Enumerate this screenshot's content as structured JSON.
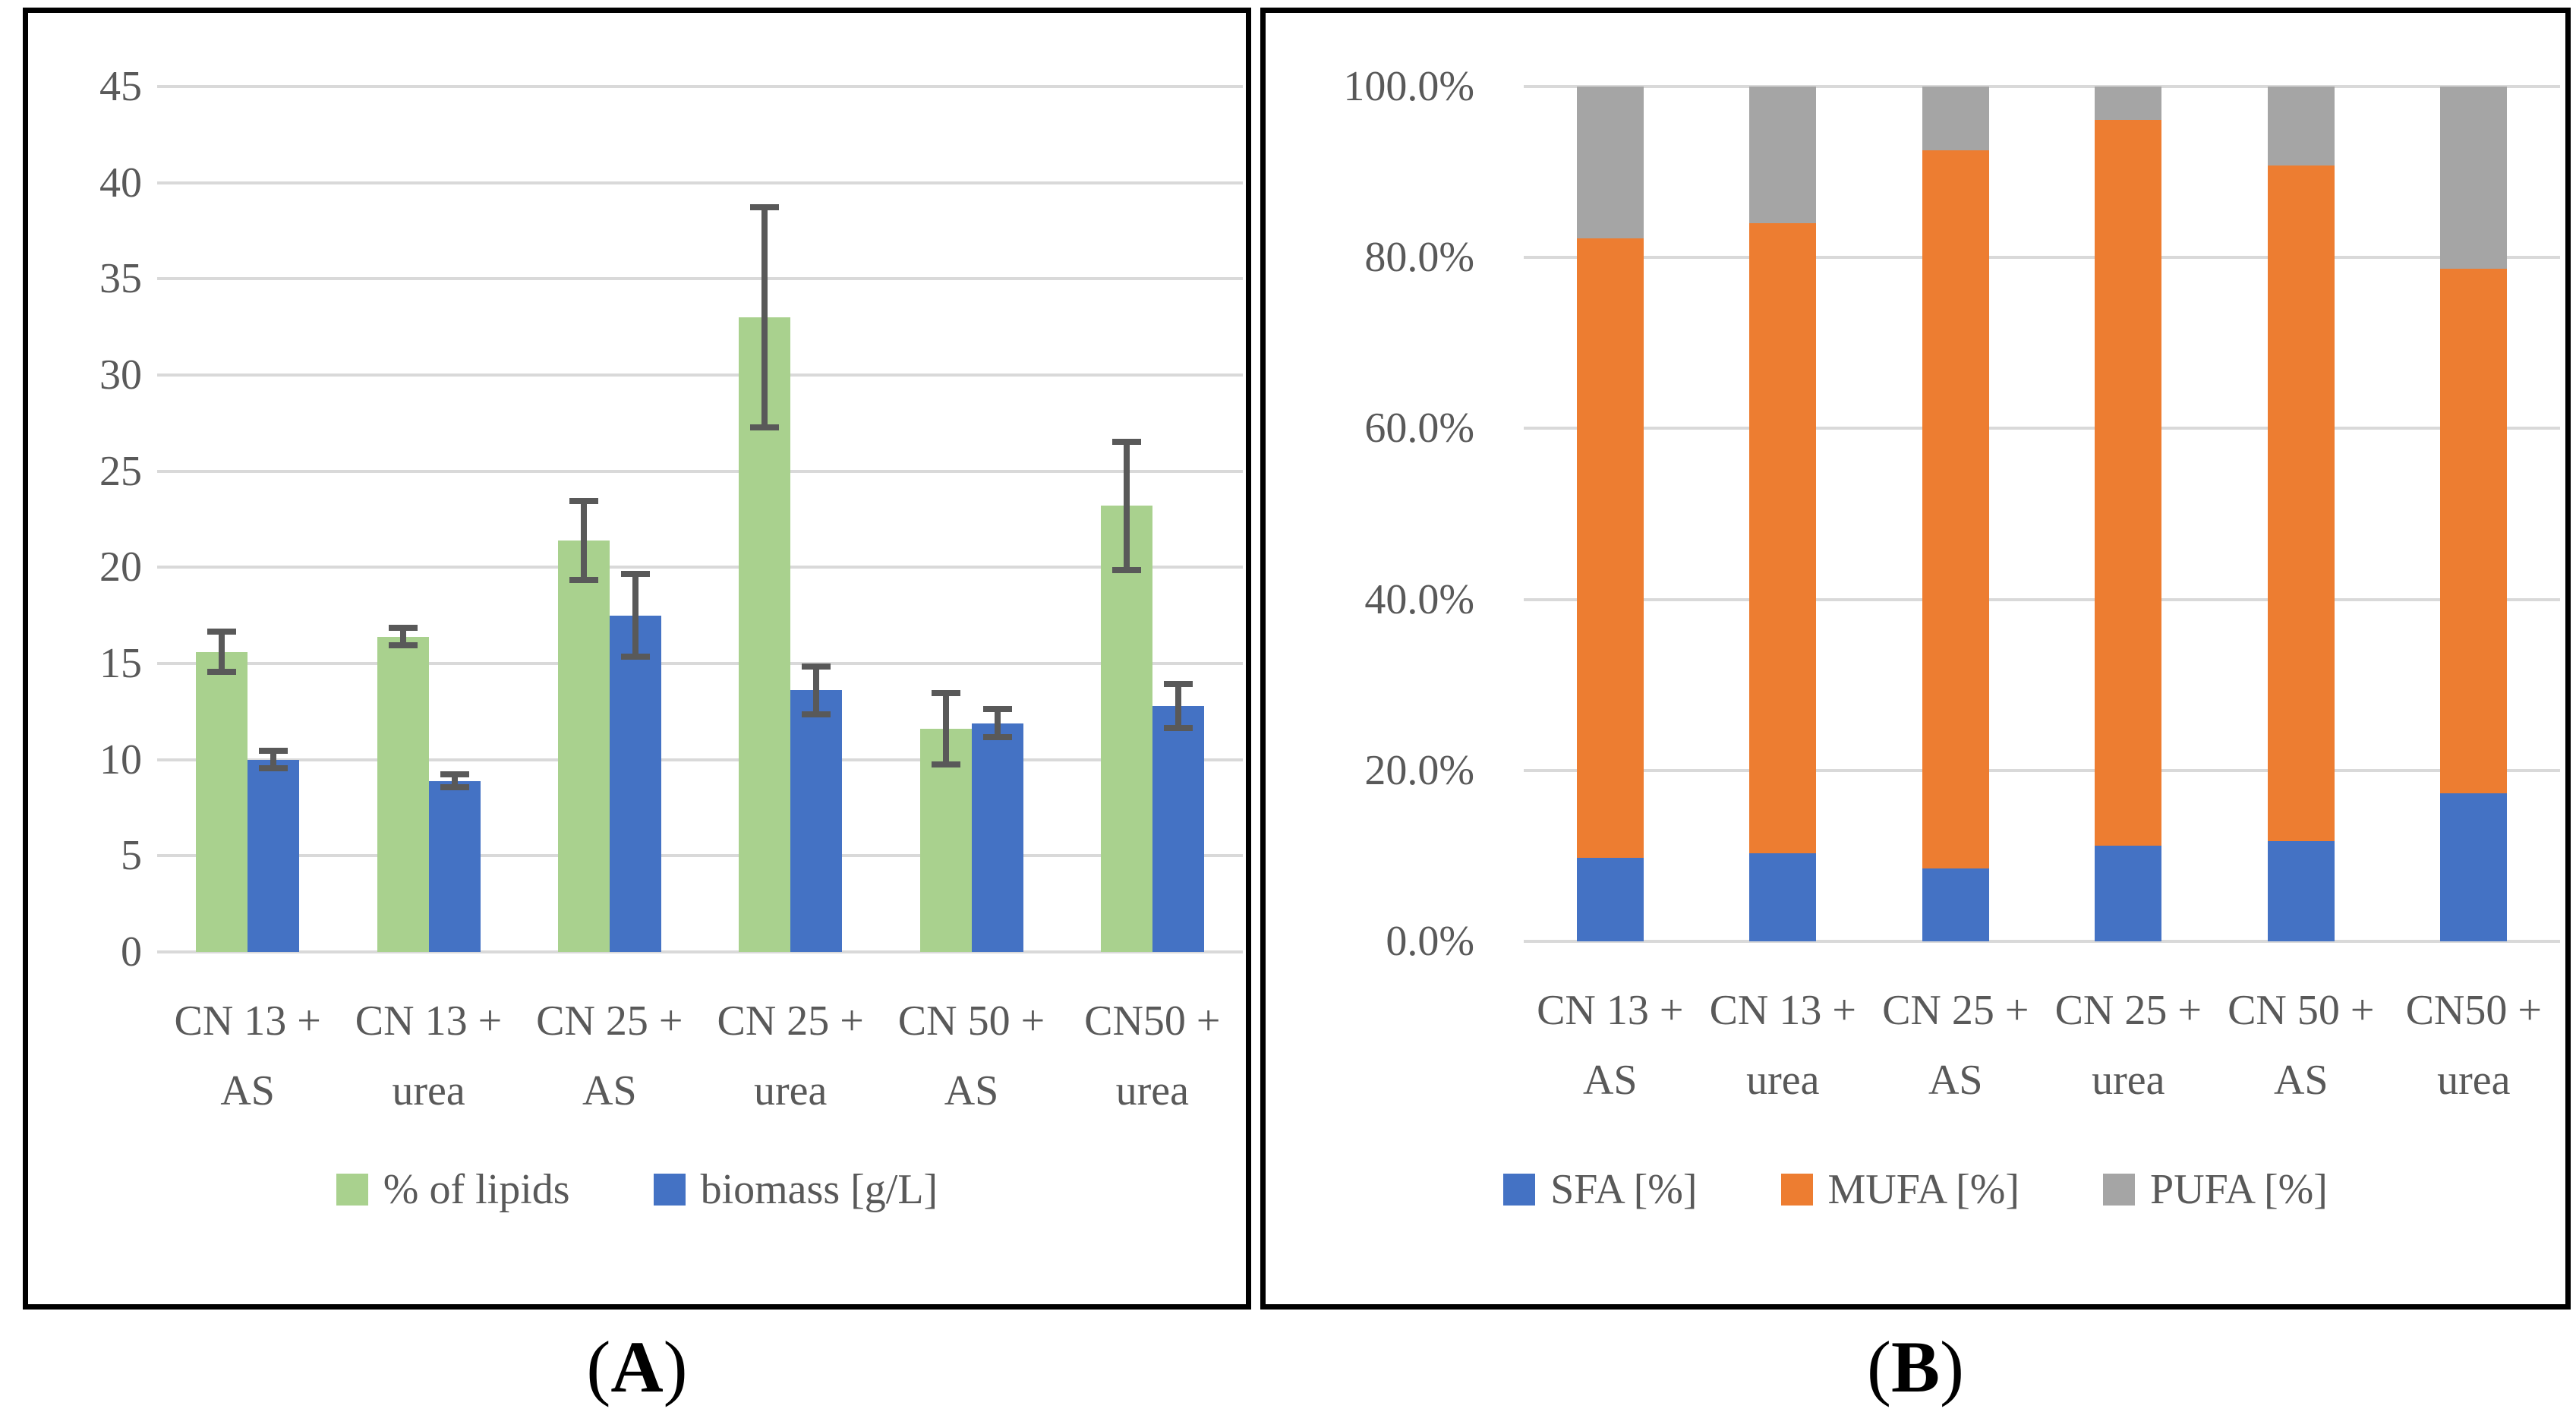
{
  "figure": {
    "background": "#ffffff",
    "captions": {
      "a_open": "(",
      "a_letter": "A",
      "a_close": ")",
      "b_open": "(",
      "b_letter": "B",
      "b_close": ")"
    }
  },
  "style": {
    "grid_color": "#d9d9d9",
    "axis_text_color": "#595959",
    "error_bar_color": "#595959",
    "panel_border_color": "#000000"
  },
  "chart_data": [
    {
      "id": "A",
      "type": "bar",
      "title": "",
      "categories": [
        "CN 13 + AS",
        "CN 13 + urea",
        "CN 25 + AS",
        "CN 25 + urea",
        "CN 50 + AS",
        "CN50 + urea"
      ],
      "tick_labels": [
        "CN 13 +\nAS",
        "CN 13 +\nurea",
        "CN 25 +\nAS",
        "CN 25 +\nurea",
        "CN 50 +\nAS",
        "CN50 +\nurea"
      ],
      "series": [
        {
          "name": "% of lipids",
          "color": "#a9d18e",
          "values": [
            15.6,
            16.4,
            21.4,
            33.0,
            11.6,
            23.2
          ],
          "errors": [
            1.2,
            0.6,
            2.2,
            5.9,
            2.0,
            3.5
          ]
        },
        {
          "name": "biomass [g/L]",
          "color": "#4472c4",
          "values": [
            10.0,
            8.9,
            17.5,
            13.6,
            11.9,
            12.8
          ],
          "errors": [
            0.6,
            0.5,
            2.3,
            1.4,
            0.9,
            1.3
          ]
        }
      ],
      "xlabel": "",
      "ylabel": "",
      "ylim": [
        0,
        45
      ],
      "yticks": [
        0,
        5,
        10,
        15,
        20,
        25,
        30,
        35,
        40,
        45
      ],
      "ytick_labels": [
        "0",
        "5",
        "10",
        "15",
        "20",
        "25",
        "30",
        "35",
        "40",
        "45"
      ],
      "grid": true,
      "legend_position": "bottom"
    },
    {
      "id": "B",
      "type": "stacked-bar-100",
      "title": "",
      "categories": [
        "CN 13 + AS",
        "CN 13 + urea",
        "CN 25 + AS",
        "CN 25 + urea",
        "CN 50 + AS",
        "CN50 + urea"
      ],
      "tick_labels": [
        "CN 13 +\nAS",
        "CN 13 +\nurea",
        "CN 25 +\nAS",
        "CN 25 +\nurea",
        "CN 50 +\nAS",
        "CN50 +\nurea"
      ],
      "series": [
        {
          "name": "SFA [%]",
          "color": "#4472c4",
          "values": [
            9.8,
            10.3,
            8.5,
            11.2,
            11.7,
            17.3
          ]
        },
        {
          "name": "MUFA [%]",
          "color": "#ed7d31",
          "values": [
            72.4,
            73.7,
            84.0,
            84.9,
            79.1,
            61.4
          ]
        },
        {
          "name": "PUFA [%]",
          "color": "#a5a5a5",
          "values": [
            17.8,
            16.0,
            7.5,
            3.9,
            9.2,
            21.3
          ]
        }
      ],
      "xlabel": "",
      "ylabel": "",
      "ylim": [
        0,
        100
      ],
      "yticks": [
        0,
        20,
        40,
        60,
        80,
        100
      ],
      "ytick_labels": [
        "0.0%",
        "20.0%",
        "40.0%",
        "60.0%",
        "80.0%",
        "100.0%"
      ],
      "grid": true,
      "legend_position": "bottom"
    }
  ]
}
